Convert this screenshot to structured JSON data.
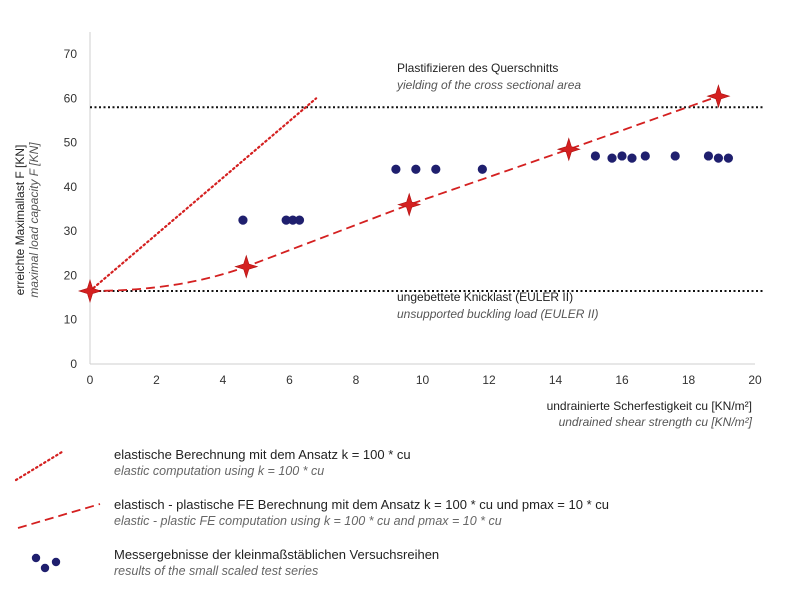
{
  "chart_data": {
    "type": "scatter",
    "x_axis": {
      "range": [
        0,
        20
      ],
      "ticks": [
        0,
        2,
        4,
        6,
        8,
        10,
        12,
        14,
        16,
        18,
        20
      ],
      "label_de": "undrainierte Scherfestigkeit cu [KN/m²]",
      "label_en": "undrained shear strength cu [KN/m²]"
    },
    "y_axis": {
      "range": [
        0,
        75
      ],
      "ticks": [
        0,
        10,
        20,
        30,
        40,
        50,
        60,
        70
      ],
      "label_de": "erreichte Maximallast F [KN]",
      "label_en": "maximal load capacity F [KN]"
    },
    "reference_lines": [
      {
        "y": 58,
        "label_de": "Plastifizieren des Querschnitts",
        "label_en": "yielding of the cross sectional area"
      },
      {
        "y": 16.5,
        "label_de": "ungebettete Knicklast (EULER II)",
        "label_en": "unsupported buckling load (EULER II)"
      }
    ],
    "series": [
      {
        "style": "dotted",
        "color": "#d42020",
        "legend_de": "elastische Berechnung mit dem Ansatz k = 100 * cu",
        "legend_en": "elastic computation using k = 100 * cu",
        "points": [
          [
            0,
            16.5
          ],
          [
            6.8,
            60
          ]
        ]
      },
      {
        "style": "dashed-stars",
        "color": "#d42020",
        "legend_de": "elastisch - plastische FE Berechnung mit dem Ansatz k = 100 * cu und pmax = 10 * cu",
        "legend_en": "elastic - plastic FE computation using k = 100 * cu and pmax = 10 * cu",
        "points": [
          [
            0,
            16.5
          ],
          [
            4.7,
            22
          ],
          [
            9.6,
            36
          ],
          [
            14.4,
            48.5
          ],
          [
            18.9,
            60.5
          ]
        ]
      },
      {
        "style": "markers",
        "color": "#1f1f6e",
        "legend_de": "Messergebnisse der kleinmaßstäblichen Versuchsreihen",
        "legend_en": "results of the small scaled test series",
        "points": [
          [
            4.6,
            32.5
          ],
          [
            5.9,
            32.5
          ],
          [
            6.1,
            32.5
          ],
          [
            6.3,
            32.5
          ],
          [
            9.2,
            44
          ],
          [
            9.8,
            44
          ],
          [
            10.4,
            44
          ],
          [
            11.8,
            44
          ],
          [
            15.2,
            47
          ],
          [
            15.7,
            46.5
          ],
          [
            16.0,
            47
          ],
          [
            16.3,
            46.5
          ],
          [
            16.7,
            47
          ],
          [
            17.6,
            47
          ],
          [
            18.6,
            47
          ],
          [
            18.9,
            46.5
          ],
          [
            19.2,
            46.5
          ]
        ]
      }
    ]
  }
}
